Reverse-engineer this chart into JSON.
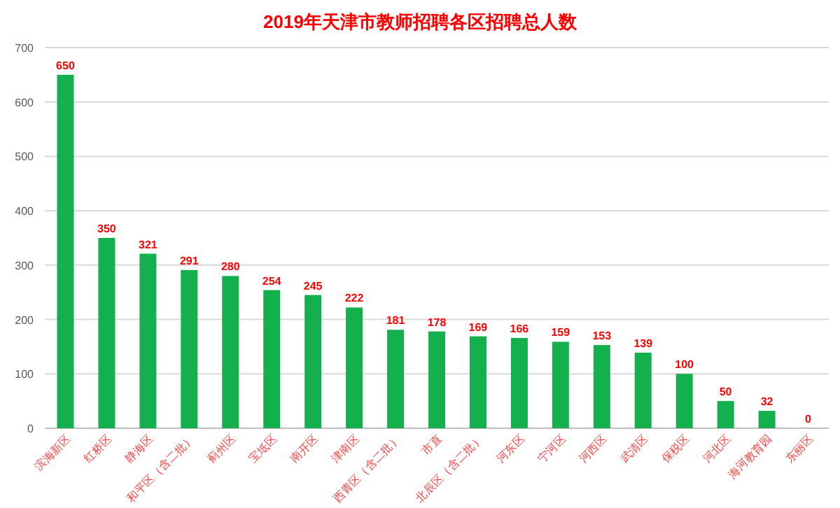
{
  "chart_data": {
    "type": "bar",
    "title": "2019年天津市教师招聘各区招聘总人数",
    "categories": [
      "滨海新区",
      "红桥区",
      "静海区",
      "和平区（含二批）",
      "蓟州区",
      "宝坻区",
      "南开区",
      "津南区",
      "西青区（含二批）",
      "市直",
      "北辰区（含二批）",
      "河东区",
      "宁河区",
      "河西区",
      "武清区",
      "保税区",
      "河北区",
      "海河教育园",
      "东丽区"
    ],
    "values": [
      650,
      350,
      321,
      291,
      280,
      254,
      245,
      222,
      181,
      178,
      169,
      166,
      159,
      153,
      139,
      100,
      50,
      32,
      0
    ],
    "color": "#14b04e",
    "data_labels": true,
    "ylim": [
      0,
      700
    ],
    "yticks": [
      0,
      100,
      200,
      300,
      400,
      500,
      600,
      700
    ],
    "grid": "y"
  }
}
